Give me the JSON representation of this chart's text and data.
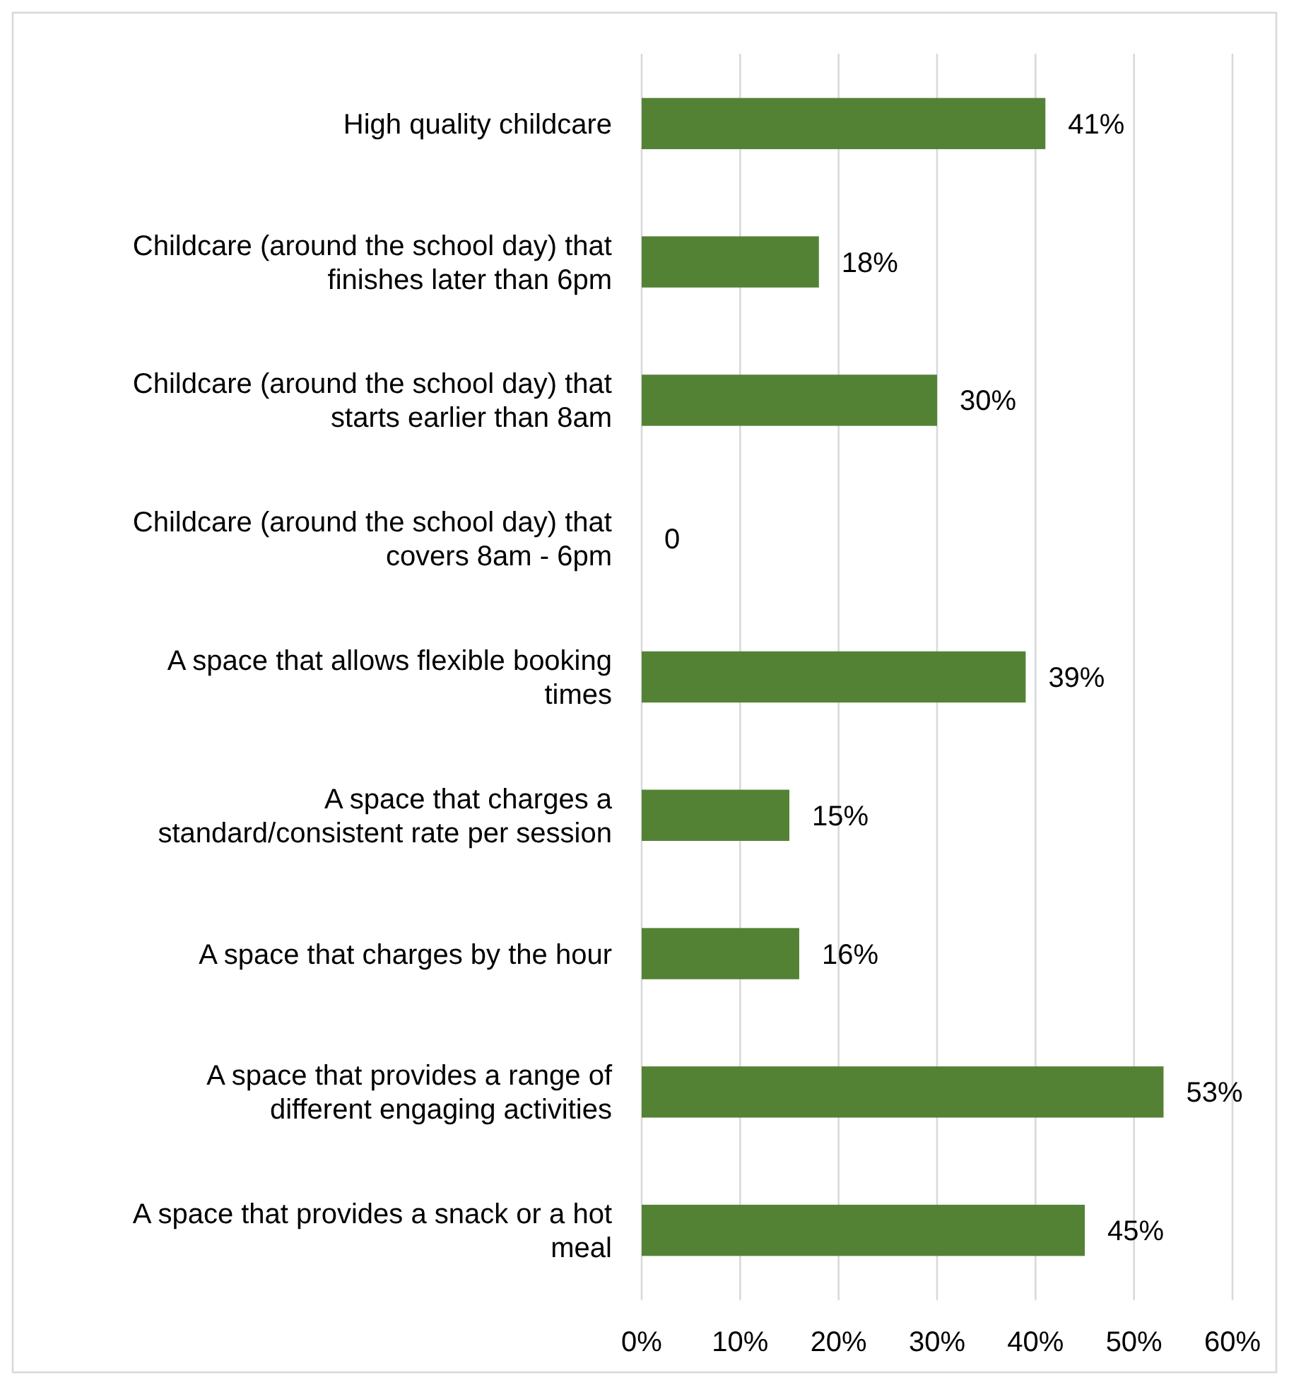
{
  "chart_data": {
    "type": "bar",
    "orientation": "horizontal",
    "categories": [
      "High quality childcare",
      "Childcare (around the school day) that finishes later than 6pm",
      "Childcare (around the school day) that starts earlier than 8am",
      "Childcare (around the school day) that covers 8am - 6pm",
      "A space that allows flexible booking times",
      "A space that charges a standard/consistent rate per session",
      "A space that charges by the hour",
      "A space that provides a range of different engaging activities",
      "A space that provides a snack or a hot meal"
    ],
    "values": [
      41,
      18,
      30,
      0,
      39,
      15,
      16,
      53,
      45
    ],
    "value_labels": [
      "41%",
      "18%",
      "30%",
      "0",
      "39%",
      "15%",
      "16%",
      "53%",
      "45%"
    ],
    "color": "#548235",
    "xlim": [
      0,
      60
    ],
    "xticks": [
      {
        "value": 0,
        "label": "0%"
      },
      {
        "value": 10,
        "label": "10%"
      },
      {
        "value": 20,
        "label": "20%"
      },
      {
        "value": 30,
        "label": "30%"
      },
      {
        "value": 40,
        "label": "40%"
      },
      {
        "value": 50,
        "label": "50%"
      },
      {
        "value": 60,
        "label": "60%"
      }
    ],
    "grid": "x"
  }
}
